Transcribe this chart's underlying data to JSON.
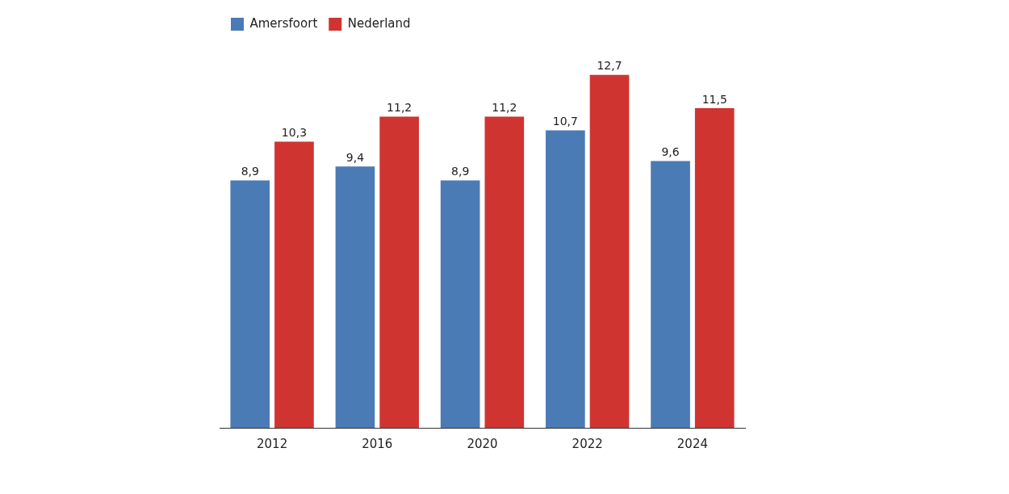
{
  "chart_data": {
    "type": "bar",
    "categories": [
      "2012",
      "2016",
      "2020",
      "2022",
      "2024"
    ],
    "legend": "top left",
    "series": [
      {
        "name": "Amersfoort",
        "color": "#4a7bb5",
        "values": [
          8.9,
          9.4,
          8.9,
          10.7,
          9.6
        ],
        "value_labels": [
          "8,9",
          "9,4",
          "8,9",
          "10,7",
          "9,6"
        ]
      },
      {
        "name": "Nederland",
        "color": "#d03431",
        "values": [
          10.3,
          11.2,
          11.2,
          12.7,
          11.5
        ],
        "value_labels": [
          "10,3",
          "11,2",
          "11,2",
          "12,7",
          "11,5"
        ]
      }
    ]
  }
}
